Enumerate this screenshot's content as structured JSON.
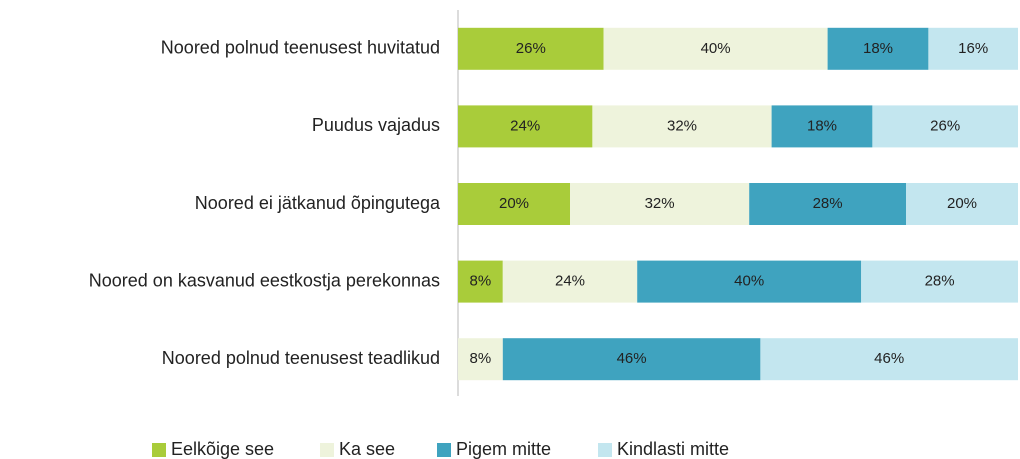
{
  "chart_data": {
    "type": "stacked_bar_horizontal",
    "categories": [
      "Noored polnud teenusest huvitatud",
      "Puudus vajadus",
      "Noored ei jätkanud õpingutega",
      "Noored on kasvanud eestkostja perekonnas",
      "Noored polnud teenusest teadlikud"
    ],
    "series": [
      {
        "name": "Eelkõige see",
        "color": "#a9cc3a",
        "values": [
          26,
          24,
          20,
          8,
          0
        ],
        "value_labels": [
          "26%",
          "24%",
          "20%",
          "8%",
          null
        ]
      },
      {
        "name": "Ka see",
        "color": "#eef3dc",
        "values": [
          40,
          32,
          32,
          24,
          8
        ],
        "value_labels": [
          "40%",
          "32%",
          "32%",
          "24%",
          "8%"
        ]
      },
      {
        "name": "Pigem mitte",
        "color": "#3fa3bf",
        "values": [
          18,
          18,
          28,
          40,
          46
        ],
        "value_labels": [
          "18%",
          "18%",
          "28%",
          "40%",
          "46%"
        ]
      },
      {
        "name": "Kindlasti mitte",
        "color": "#c3e6ef",
        "values": [
          16,
          26,
          20,
          28,
          46
        ],
        "value_labels": [
          "16%",
          "26%",
          "20%",
          "28%",
          "46%"
        ]
      }
    ],
    "xlim": [
      0,
      100
    ],
    "legend": "bottom"
  }
}
